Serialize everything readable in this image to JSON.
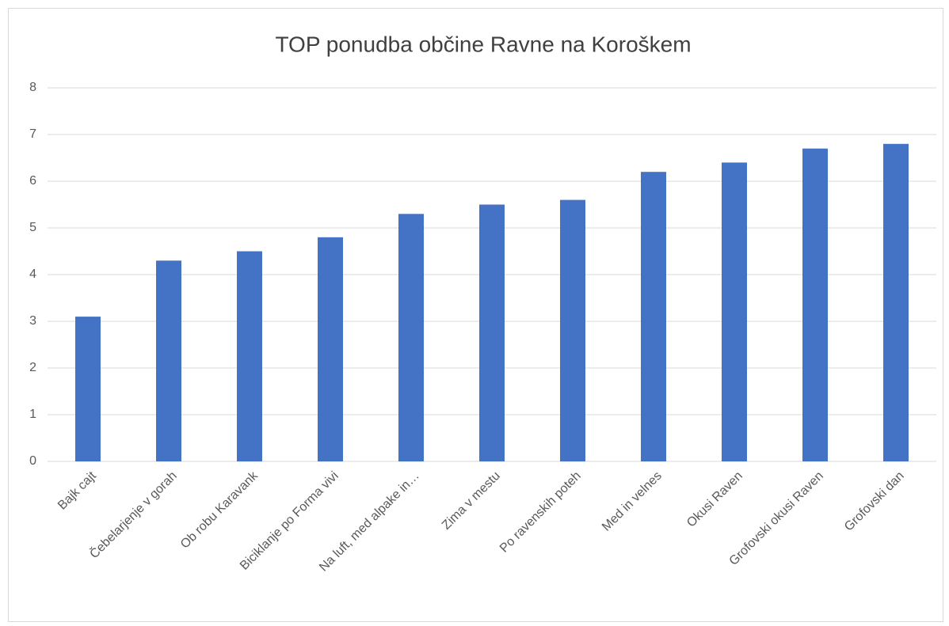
{
  "chart_data": {
    "type": "bar",
    "title": "TOP ponudba občine Ravne na Koroškem",
    "categories": [
      "Bajk cajt",
      "Čebelarjenje v gorah",
      "Ob robu Karavank",
      "Biciklanje po Forma vivi",
      "Na luft, med alpake in…",
      "Zima v mestu",
      "Po ravenskih poteh",
      "Med in velnes",
      "Okusi Raven",
      "Grofovski okusi Raven",
      "Grofovski dan"
    ],
    "values": [
      3.1,
      4.3,
      4.5,
      4.8,
      5.3,
      5.5,
      5.6,
      6.2,
      6.4,
      6.7,
      6.8
    ],
    "color": "#4472c4",
    "ylim": [
      0,
      8
    ],
    "yticks": [
      0,
      1,
      2,
      3,
      4,
      5,
      6,
      7,
      8
    ],
    "grid": true
  }
}
